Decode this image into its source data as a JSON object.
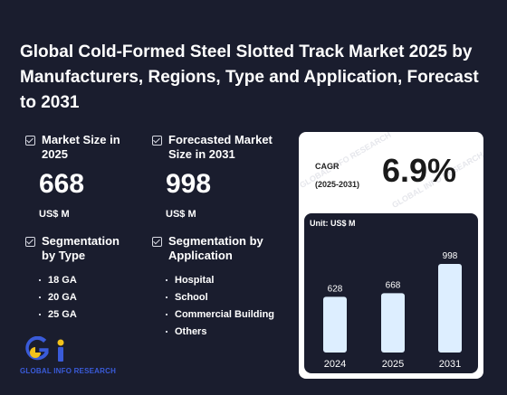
{
  "title": "Global Cold-Formed Steel Slotted Track Market 2025 by Manufacturers, Regions, Type and Application, Forecast to 2031",
  "market_size": {
    "label": "Market Size in 2025",
    "value": "668",
    "unit": "US$ M"
  },
  "forecast_size": {
    "label": "Forecasted Market Size in 2031",
    "value": "998",
    "unit": "US$ M"
  },
  "seg_type": {
    "label": "Segmentation by Type",
    "items": [
      "18 GA",
      "20 GA",
      "25 GA"
    ]
  },
  "seg_app": {
    "label": "Segmentation by Application",
    "items": [
      "Hospital",
      "School",
      "Commercial Building",
      "Others"
    ]
  },
  "logo": {
    "text": "GLOBAL INFO RESEARCH",
    "colors": {
      "blue": "#3a5bd9",
      "yellow": "#f2c21b"
    }
  },
  "cagr": {
    "label_line1": "CAGR",
    "label_line2": "(2025-2031)",
    "value": "6.9%"
  },
  "watermark": "GLOBAL INFO RESEARCH",
  "chart_data": {
    "type": "bar",
    "unit_label": "Unit: US$ M",
    "categories": [
      "2024",
      "2025",
      "2031"
    ],
    "values": [
      628,
      668,
      998
    ],
    "bar_color": "#ddeeff",
    "ylim": [
      0,
      998
    ]
  }
}
